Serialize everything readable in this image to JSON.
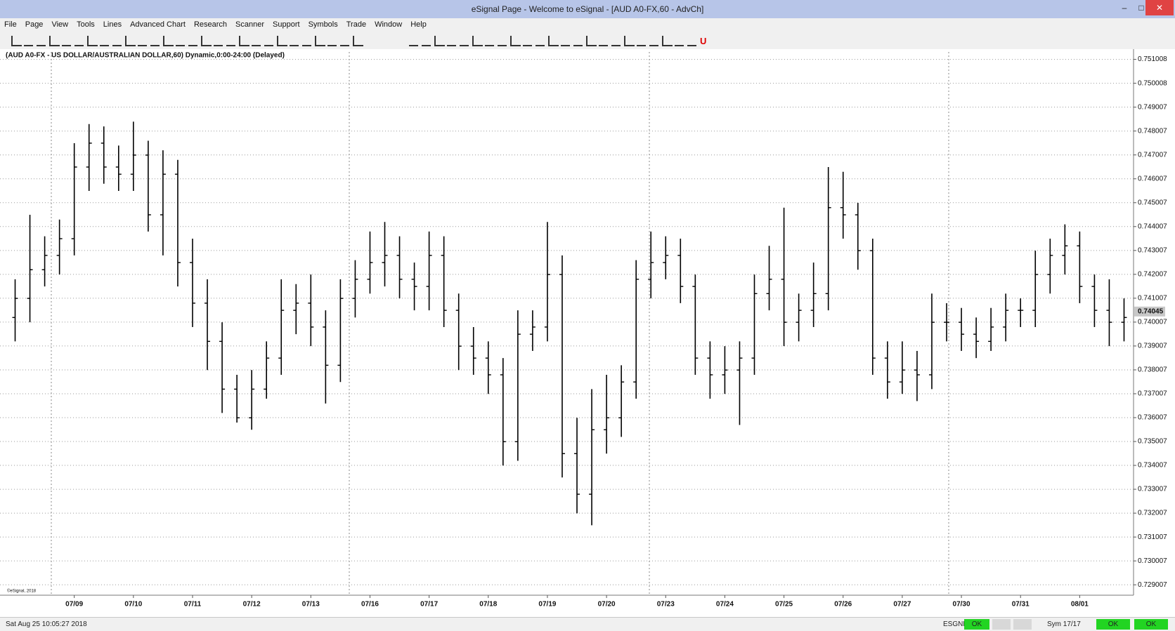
{
  "window": {
    "title": "eSignal Page - Welcome to eSignal - [AUD A0-FX,60 - AdvCh]"
  },
  "menu": [
    "File",
    "Page",
    "View",
    "Tools",
    "Lines",
    "Advanced Chart",
    "Research",
    "Scanner",
    "Support",
    "Symbols",
    "Trade",
    "Window",
    "Help"
  ],
  "status": {
    "datetime": "Sat Aug 25 10:05:27 2018",
    "feed": "ESGNL:",
    "feed_state": "OK",
    "symbols": "Sym 17/17",
    "state_1": "OK",
    "state_2": "OK"
  },
  "chart_data": {
    "type": "ohlc",
    "title": "(AUD A0-FX - US DOLLAR/AUSTRALIAN DOLLAR,60) Dynamic,0:00-24:00 (Delayed)",
    "copyright": "©eSignal, 2018",
    "categories": [
      null,
      null,
      null,
      null,
      "07/09",
      null,
      null,
      null,
      "07/10",
      null,
      null,
      null,
      "07/11",
      null,
      null,
      null,
      "07/12",
      null,
      null,
      null,
      "07/13",
      null,
      null,
      null,
      "07/16",
      null,
      null,
      null,
      "07/17",
      null,
      null,
      null,
      "07/18",
      null,
      null,
      null,
      "07/19",
      null,
      null,
      null,
      "07/20",
      null,
      null,
      null,
      "07/23",
      null,
      null,
      null,
      "07/24",
      null,
      null,
      null,
      "07/25",
      null,
      null,
      null,
      "07/26",
      null,
      null,
      null,
      "07/27",
      null,
      null,
      null,
      "07/30",
      null,
      null,
      null,
      "07/31",
      null,
      null,
      null,
      "08/01",
      null,
      null,
      null
    ],
    "open": [
      0.7402,
      0.741,
      0.7422,
      0.7428,
      0.7435,
      0.7465,
      0.7475,
      0.7465,
      0.7462,
      0.747,
      0.7445,
      0.7462,
      0.7425,
      0.7408,
      0.7392,
      0.7372,
      0.736,
      0.7372,
      0.7385,
      0.7405,
      0.7408,
      0.7398,
      0.7382,
      0.741,
      0.7418,
      0.7425,
      0.7428,
      0.7418,
      0.7415,
      0.7428,
      0.7405,
      0.739,
      0.7385,
      0.7378,
      0.735,
      0.7395,
      0.7398,
      0.742,
      0.7345,
      0.7328,
      0.7355,
      0.736,
      0.7375,
      0.7418,
      0.7425,
      0.7428,
      0.7415,
      0.7385,
      0.7378,
      0.738,
      0.7385,
      0.7412,
      0.7418,
      0.74,
      0.7405,
      0.7412,
      0.7448,
      0.7445,
      0.743,
      0.7385,
      0.7375,
      0.738,
      0.7378,
      0.74,
      0.74,
      0.7395,
      0.7392,
      0.7398,
      0.7405,
      0.7405,
      0.742,
      0.7428,
      0.7432,
      0.7415,
      0.7405,
      0.74
    ],
    "high": [
      0.7418,
      0.7445,
      0.7436,
      0.7443,
      0.7475,
      0.7483,
      0.7482,
      0.7474,
      0.7484,
      0.7476,
      0.7472,
      0.7468,
      0.7435,
      0.7418,
      0.74,
      0.7378,
      0.738,
      0.7392,
      0.7418,
      0.7416,
      0.742,
      0.7405,
      0.7418,
      0.7426,
      0.7438,
      0.7442,
      0.7436,
      0.7425,
      0.7438,
      0.7436,
      0.7412,
      0.7398,
      0.7392,
      0.7385,
      0.7405,
      0.7405,
      0.7442,
      0.7428,
      0.736,
      0.7372,
      0.7378,
      0.7382,
      0.7426,
      0.7438,
      0.7436,
      0.7435,
      0.742,
      0.7392,
      0.739,
      0.7392,
      0.742,
      0.7432,
      0.7448,
      0.7412,
      0.7425,
      0.7465,
      0.7463,
      0.745,
      0.7435,
      0.7392,
      0.7392,
      0.7388,
      0.7412,
      0.7408,
      0.7406,
      0.7402,
      0.7406,
      0.7412,
      0.741,
      0.743,
      0.7435,
      0.7441,
      0.7438,
      0.742,
      0.7418,
      0.741
    ],
    "low": [
      0.7392,
      0.74,
      0.7415,
      0.742,
      0.7428,
      0.7455,
      0.7458,
      0.7455,
      0.7455,
      0.7438,
      0.7428,
      0.7415,
      0.7398,
      0.738,
      0.7362,
      0.7358,
      0.7355,
      0.7368,
      0.7378,
      0.7395,
      0.739,
      0.7366,
      0.7375,
      0.7402,
      0.7412,
      0.7415,
      0.741,
      0.7405,
      0.7405,
      0.7398,
      0.738,
      0.7378,
      0.737,
      0.734,
      0.7342,
      0.7388,
      0.7392,
      0.7335,
      0.732,
      0.7315,
      0.7345,
      0.7352,
      0.7368,
      0.741,
      0.7418,
      0.7408,
      0.7378,
      0.7368,
      0.737,
      0.7357,
      0.7378,
      0.7405,
      0.739,
      0.7392,
      0.7398,
      0.7405,
      0.7435,
      0.7422,
      0.7378,
      0.7368,
      0.737,
      0.7367,
      0.7372,
      0.7392,
      0.7388,
      0.7385,
      0.7388,
      0.7392,
      0.7398,
      0.7398,
      0.7412,
      0.742,
      0.7408,
      0.7398,
      0.739,
      0.7392
    ],
    "close": [
      0.741,
      0.7422,
      0.7428,
      0.7435,
      0.7465,
      0.7475,
      0.7465,
      0.7462,
      0.747,
      0.7445,
      0.7462,
      0.7425,
      0.7408,
      0.7392,
      0.7372,
      0.736,
      0.7372,
      0.7385,
      0.7405,
      0.7408,
      0.7398,
      0.7382,
      0.741,
      0.7418,
      0.7425,
      0.7428,
      0.7418,
      0.7415,
      0.7428,
      0.7405,
      0.739,
      0.7385,
      0.7378,
      0.735,
      0.7395,
      0.7398,
      0.742,
      0.7345,
      0.7328,
      0.7355,
      0.736,
      0.7375,
      0.7418,
      0.7425,
      0.7428,
      0.7415,
      0.7385,
      0.7378,
      0.738,
      0.7385,
      0.7412,
      0.7418,
      0.74,
      0.7405,
      0.7412,
      0.7448,
      0.7445,
      0.743,
      0.7385,
      0.7375,
      0.738,
      0.7378,
      0.74,
      0.74,
      0.7395,
      0.7392,
      0.7398,
      0.7405,
      0.7405,
      0.742,
      0.7428,
      0.7432,
      0.7415,
      0.7405,
      0.74,
      0.7402
    ],
    "color": "#000000",
    "last_value": 0.74045,
    "ylim": [
      0.72863,
      0.75129
    ],
    "yticks": [
      0.751008,
      0.750008,
      0.749007,
      0.748007,
      0.747007,
      0.746007,
      0.745007,
      0.744007,
      0.743007,
      0.742007,
      0.741007,
      0.740007,
      0.739007,
      0.738007,
      0.737007,
      0.736007,
      0.735007,
      0.734007,
      0.733007,
      0.732007,
      0.731007,
      0.730007,
      0.729007
    ],
    "grid": true
  }
}
